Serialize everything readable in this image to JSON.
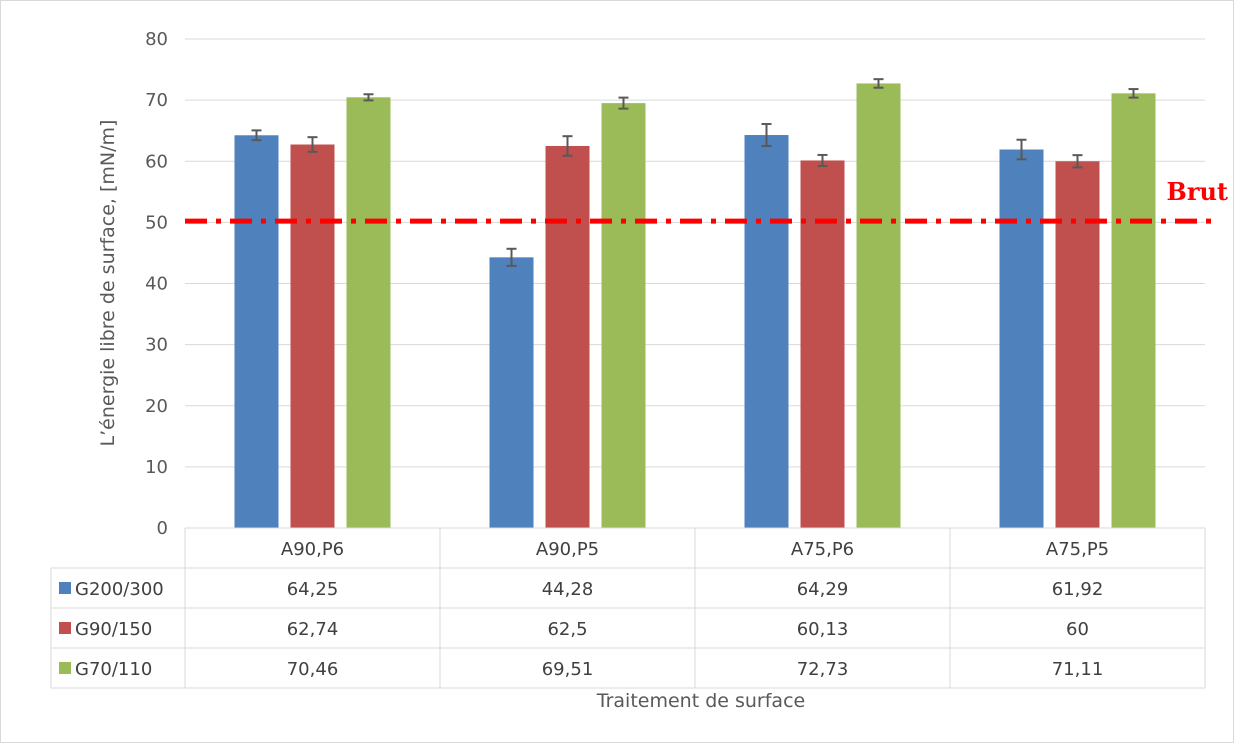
{
  "chart_data": {
    "type": "bar",
    "title": "",
    "xlabel": "Traitement de surface",
    "ylabel": "L’énergie libre de surface, [mN/m]",
    "categories": [
      "A90,P6",
      "A90,P5",
      "A75,P6",
      "A75,P5"
    ],
    "ylim": [
      0,
      80
    ],
    "yticks": [
      0,
      10,
      20,
      30,
      40,
      50,
      60,
      70,
      80
    ],
    "grid": true,
    "legend_position": "data table below plot",
    "series": [
      {
        "name": "G200/300",
        "color": "#4f81bd",
        "values": [
          64.25,
          44.28,
          64.29,
          61.92
        ],
        "labels": [
          "64,25",
          "44,28",
          "64,29",
          "61,92"
        ],
        "error": [
          0.8,
          1.4,
          1.8,
          1.6
        ]
      },
      {
        "name": "G90/150",
        "color": "#c0504d",
        "values": [
          62.74,
          62.5,
          60.13,
          60
        ],
        "labels": [
          "62,74",
          "62,5",
          "60,13",
          "60"
        ],
        "error": [
          1.2,
          1.6,
          0.9,
          1.0
        ]
      },
      {
        "name": "G70/110",
        "color": "#9bbb59",
        "values": [
          70.46,
          69.51,
          72.73,
          71.11
        ],
        "labels": [
          "70,46",
          "69,51",
          "72,73",
          "71,11"
        ],
        "error": [
          0.5,
          0.9,
          0.7,
          0.7
        ]
      }
    ],
    "reference_line": {
      "label": "Brut",
      "value": 50.2,
      "color": "#ff0000",
      "style": "dash-dot"
    }
  }
}
